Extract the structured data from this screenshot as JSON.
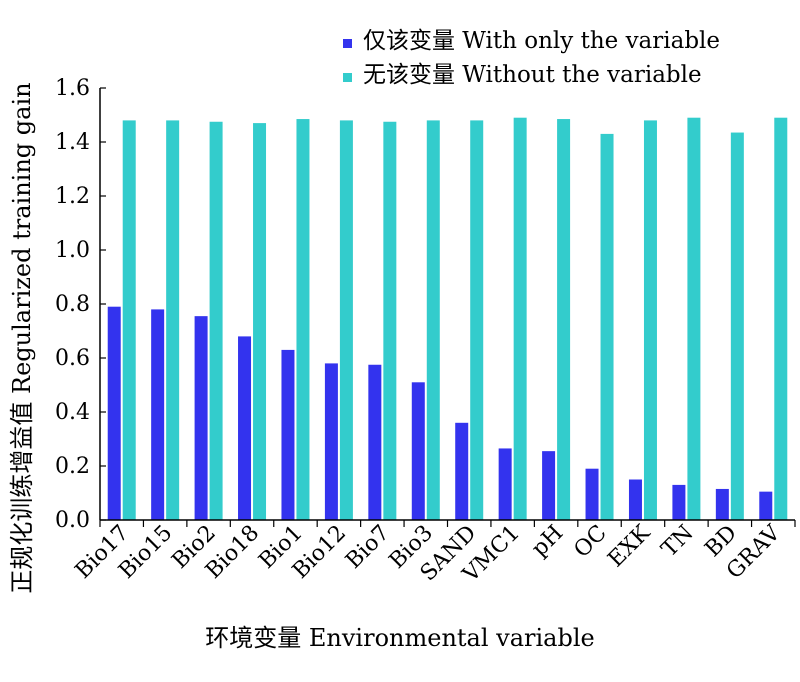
{
  "chart_data": {
    "type": "bar",
    "categories": [
      "Bio17",
      "Bio15",
      "Bio2",
      "Bio18",
      "Bio1",
      "Bio12",
      "Bio7",
      "Bio3",
      "SAND",
      "VMC1",
      "pH",
      "OC",
      "EXK",
      "TN",
      "BD",
      "GRAV"
    ],
    "series": [
      {
        "name": "仅该变量 With only the variable",
        "color": "#3333ee",
        "values": [
          0.79,
          0.78,
          0.755,
          0.68,
          0.63,
          0.58,
          0.575,
          0.51,
          0.36,
          0.265,
          0.255,
          0.19,
          0.15,
          0.13,
          0.115,
          0.105
        ]
      },
      {
        "name": "无该变量 Without the variable",
        "color": "#33cccc",
        "values": [
          1.48,
          1.48,
          1.475,
          1.47,
          1.485,
          1.48,
          1.475,
          1.48,
          1.48,
          1.49,
          1.485,
          1.43,
          1.48,
          1.49,
          1.435,
          1.49
        ]
      }
    ],
    "xlabel": "环境变量 Environmental variable",
    "ylabel": "正规化训练增益值 Regularized training gain",
    "ylim": [
      0,
      1.6
    ],
    "yticks": [
      "0.0",
      "0.2",
      "0.4",
      "0.6",
      "0.8",
      "1.0",
      "1.2",
      "1.4",
      "1.6"
    ],
    "grid": false,
    "legend_position": "top-right"
  }
}
